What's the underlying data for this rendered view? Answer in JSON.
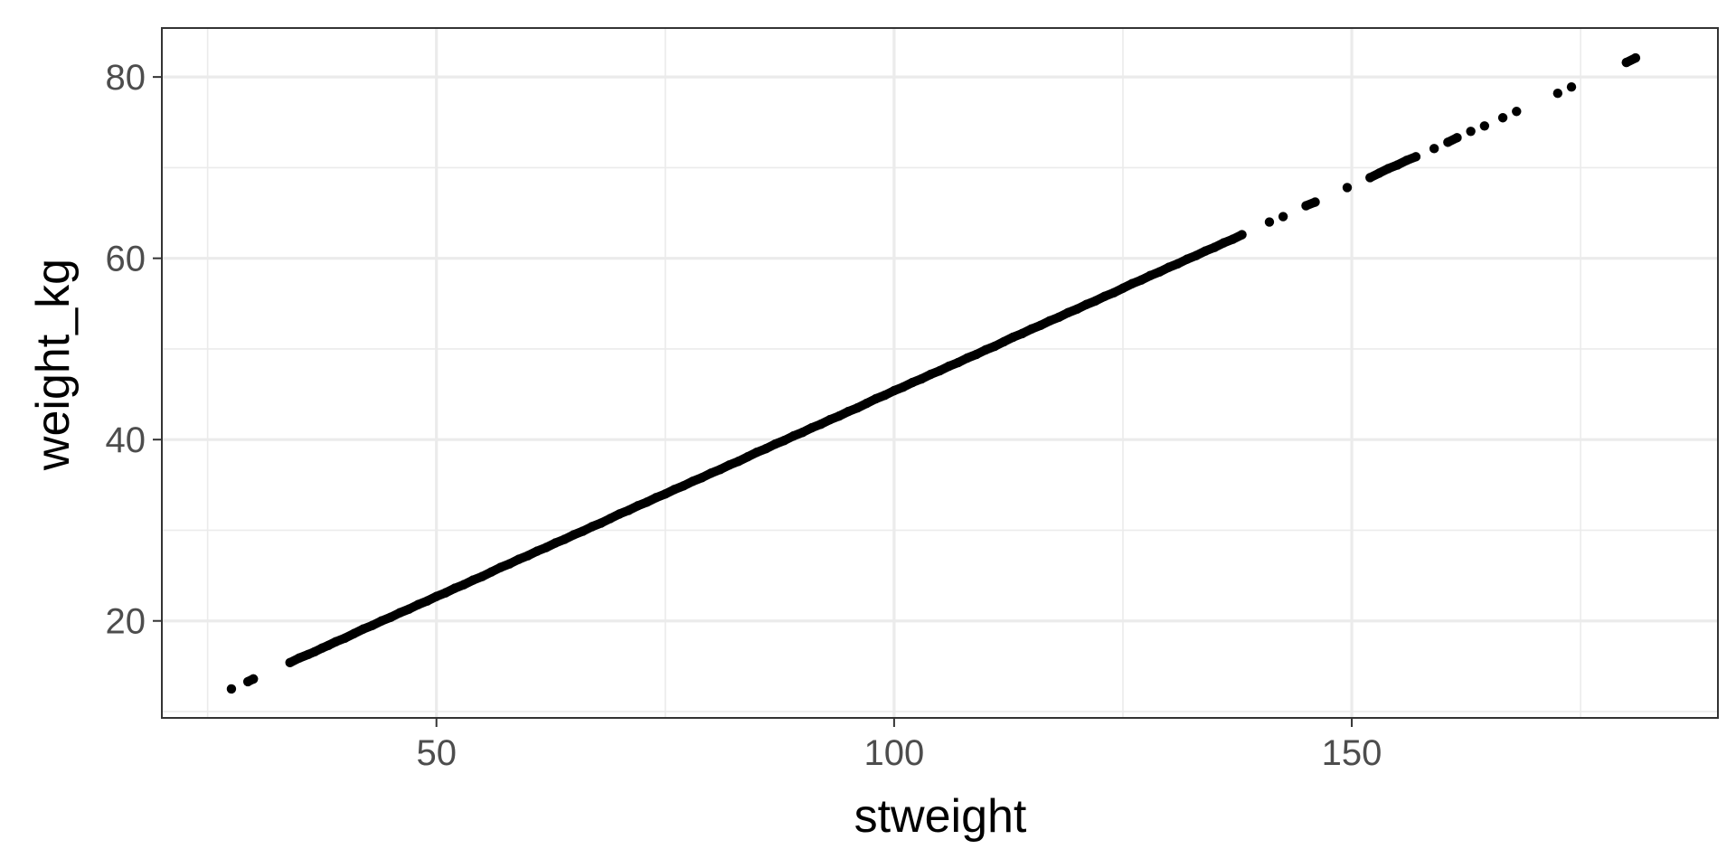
{
  "chart_data": {
    "type": "scatter",
    "title": "",
    "xlabel": "stweight",
    "ylabel": "weight_kg",
    "xlim": [
      20,
      190
    ],
    "ylim": [
      9.3,
      85.4
    ],
    "x_major_ticks": [
      50,
      100,
      150
    ],
    "x_minor_ticks": [
      25,
      75,
      125,
      175
    ],
    "y_major_ticks": [
      20,
      40,
      60,
      80
    ],
    "y_minor_ticks": [
      10,
      30,
      50,
      70
    ],
    "x_tick_labels": [
      "50",
      "100",
      "150"
    ],
    "y_tick_labels": [
      "20",
      "40",
      "60",
      "80"
    ],
    "grid": true,
    "point_color": "#000000",
    "panel_border_color": "#333333",
    "grid_color": "#ebebeb",
    "series": [
      {
        "points": [
          {
            "x": 27.6,
            "y": 12.5
          },
          {
            "x": 29.4,
            "y": 13.3
          },
          {
            "x": 30.0,
            "y": 13.6
          },
          {
            "x": 34.0,
            "y": 15.4
          },
          {
            "x": 35.0,
            "y": 15.9
          },
          {
            "x": 36.0,
            "y": 16.3
          },
          {
            "x": 36.7,
            "y": 16.6
          },
          {
            "x": 37.5,
            "y": 17.0
          },
          {
            "x": 38.2,
            "y": 17.3
          },
          {
            "x": 39.0,
            "y": 17.7
          },
          {
            "x": 40,
            "y": 18.1
          },
          {
            "x": 41,
            "y": 18.6
          },
          {
            "x": 42,
            "y": 19.1
          },
          {
            "x": 43,
            "y": 19.5
          },
          {
            "x": 44,
            "y": 20.0
          },
          {
            "x": 45,
            "y": 20.4
          },
          {
            "x": 46,
            "y": 20.9
          },
          {
            "x": 47,
            "y": 21.3
          },
          {
            "x": 48,
            "y": 21.8
          },
          {
            "x": 49,
            "y": 22.2
          },
          {
            "x": 50,
            "y": 22.7
          },
          {
            "x": 51,
            "y": 23.1
          },
          {
            "x": 52,
            "y": 23.6
          },
          {
            "x": 53,
            "y": 24.0
          },
          {
            "x": 54,
            "y": 24.5
          },
          {
            "x": 55,
            "y": 24.9
          },
          {
            "x": 56,
            "y": 25.4
          },
          {
            "x": 57,
            "y": 25.9
          },
          {
            "x": 58,
            "y": 26.3
          },
          {
            "x": 59,
            "y": 26.8
          },
          {
            "x": 60,
            "y": 27.2
          },
          {
            "x": 61,
            "y": 27.7
          },
          {
            "x": 62,
            "y": 28.1
          },
          {
            "x": 63,
            "y": 28.6
          },
          {
            "x": 64,
            "y": 29.0
          },
          {
            "x": 65,
            "y": 29.5
          },
          {
            "x": 66,
            "y": 29.9
          },
          {
            "x": 67,
            "y": 30.4
          },
          {
            "x": 68,
            "y": 30.8
          },
          {
            "x": 69,
            "y": 31.3
          },
          {
            "x": 70,
            "y": 31.8
          },
          {
            "x": 71,
            "y": 32.2
          },
          {
            "x": 72,
            "y": 32.7
          },
          {
            "x": 73,
            "y": 33.1
          },
          {
            "x": 74,
            "y": 33.6
          },
          {
            "x": 75,
            "y": 34.0
          },
          {
            "x": 76,
            "y": 34.5
          },
          {
            "x": 77,
            "y": 34.9
          },
          {
            "x": 78,
            "y": 35.4
          },
          {
            "x": 79,
            "y": 35.8
          },
          {
            "x": 80,
            "y": 36.3
          },
          {
            "x": 81,
            "y": 36.7
          },
          {
            "x": 82,
            "y": 37.2
          },
          {
            "x": 83,
            "y": 37.6
          },
          {
            "x": 84,
            "y": 38.1
          },
          {
            "x": 85,
            "y": 38.6
          },
          {
            "x": 86,
            "y": 39.0
          },
          {
            "x": 87,
            "y": 39.5
          },
          {
            "x": 88,
            "y": 39.9
          },
          {
            "x": 89,
            "y": 40.4
          },
          {
            "x": 90,
            "y": 40.8
          },
          {
            "x": 91,
            "y": 41.3
          },
          {
            "x": 92,
            "y": 41.7
          },
          {
            "x": 93,
            "y": 42.2
          },
          {
            "x": 94,
            "y": 42.6
          },
          {
            "x": 95,
            "y": 43.1
          },
          {
            "x": 96,
            "y": 43.5
          },
          {
            "x": 97,
            "y": 44.0
          },
          {
            "x": 98,
            "y": 44.5
          },
          {
            "x": 99,
            "y": 44.9
          },
          {
            "x": 100,
            "y": 45.4
          },
          {
            "x": 101,
            "y": 45.8
          },
          {
            "x": 102,
            "y": 46.3
          },
          {
            "x": 103,
            "y": 46.7
          },
          {
            "x": 104,
            "y": 47.2
          },
          {
            "x": 105,
            "y": 47.6
          },
          {
            "x": 106,
            "y": 48.1
          },
          {
            "x": 107,
            "y": 48.5
          },
          {
            "x": 108,
            "y": 49.0
          },
          {
            "x": 109,
            "y": 49.4
          },
          {
            "x": 110,
            "y": 49.9
          },
          {
            "x": 111,
            "y": 50.3
          },
          {
            "x": 112,
            "y": 50.8
          },
          {
            "x": 113,
            "y": 51.3
          },
          {
            "x": 114,
            "y": 51.7
          },
          {
            "x": 115,
            "y": 52.2
          },
          {
            "x": 116,
            "y": 52.6
          },
          {
            "x": 117,
            "y": 53.1
          },
          {
            "x": 118,
            "y": 53.5
          },
          {
            "x": 119,
            "y": 54.0
          },
          {
            "x": 120,
            "y": 54.4
          },
          {
            "x": 121,
            "y": 54.9
          },
          {
            "x": 122,
            "y": 55.3
          },
          {
            "x": 123,
            "y": 55.8
          },
          {
            "x": 124,
            "y": 56.2
          },
          {
            "x": 125,
            "y": 56.7
          },
          {
            "x": 126,
            "y": 57.2
          },
          {
            "x": 127,
            "y": 57.6
          },
          {
            "x": 128,
            "y": 58.1
          },
          {
            "x": 129,
            "y": 58.5
          },
          {
            "x": 130,
            "y": 59.0
          },
          {
            "x": 131,
            "y": 59.4
          },
          {
            "x": 132,
            "y": 59.9
          },
          {
            "x": 133,
            "y": 60.3
          },
          {
            "x": 134,
            "y": 60.8
          },
          {
            "x": 135,
            "y": 61.2
          },
          {
            "x": 136,
            "y": 61.7
          },
          {
            "x": 137,
            "y": 62.1
          },
          {
            "x": 138,
            "y": 62.6
          },
          {
            "x": 141.0,
            "y": 64.0
          },
          {
            "x": 142.5,
            "y": 64.6
          },
          {
            "x": 145.0,
            "y": 65.8
          },
          {
            "x": 146.0,
            "y": 66.2
          },
          {
            "x": 149.5,
            "y": 67.8
          },
          {
            "x": 152.0,
            "y": 68.9
          },
          {
            "x": 153.0,
            "y": 69.4
          },
          {
            "x": 154.0,
            "y": 69.9
          },
          {
            "x": 155.0,
            "y": 70.3
          },
          {
            "x": 156.0,
            "y": 70.8
          },
          {
            "x": 157.0,
            "y": 71.2
          },
          {
            "x": 159.0,
            "y": 72.1
          },
          {
            "x": 160.5,
            "y": 72.8
          },
          {
            "x": 161.5,
            "y": 73.3
          },
          {
            "x": 163.0,
            "y": 74.0
          },
          {
            "x": 164.5,
            "y": 74.6
          },
          {
            "x": 166.5,
            "y": 75.5
          },
          {
            "x": 168.0,
            "y": 76.2
          },
          {
            "x": 172.5,
            "y": 78.2
          },
          {
            "x": 174.0,
            "y": 78.9
          },
          {
            "x": 180.0,
            "y": 81.6
          },
          {
            "x": 181.0,
            "y": 82.1
          }
        ]
      }
    ]
  }
}
